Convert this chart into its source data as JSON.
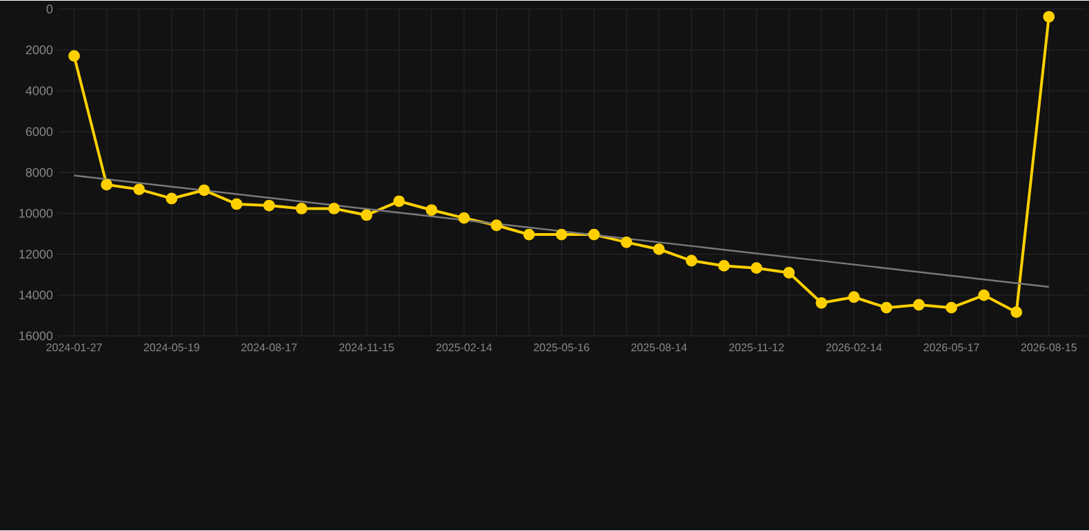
{
  "chart_data": {
    "type": "line",
    "categories": [
      "2024-01-27",
      null,
      null,
      "2024-05-19",
      null,
      null,
      "2024-08-17",
      null,
      null,
      "2024-11-15",
      null,
      null,
      "2025-02-14",
      null,
      null,
      "2025-05-16",
      null,
      null,
      "2025-08-14",
      null,
      null,
      "2025-11-12",
      null,
      null,
      "2026-02-14",
      null,
      null,
      "2026-05-17",
      null,
      null,
      "2026-08-15"
    ],
    "series": [
      {
        "color": "#ffd000",
        "marker": "circle",
        "values": [
          2300,
          8600,
          8830,
          9280,
          8870,
          9550,
          9620,
          9770,
          9770,
          10090,
          9410,
          9840,
          10230,
          10590,
          11040,
          11040,
          11040,
          11420,
          11760,
          12320,
          12570,
          12680,
          12910,
          14390,
          14100,
          14620,
          14480,
          14620,
          14010,
          14840,
          380
        ]
      },
      {
        "color": "#7a7a7a",
        "marker": "none",
        "values": [
          8150,
          null,
          null,
          null,
          null,
          null,
          null,
          null,
          null,
          null,
          null,
          null,
          null,
          null,
          null,
          null,
          null,
          null,
          null,
          null,
          null,
          null,
          null,
          null,
          null,
          null,
          null,
          null,
          null,
          null,
          13600
        ]
      }
    ],
    "ylim": [
      16000,
      0
    ],
    "yticks": [
      0,
      2000,
      4000,
      6000,
      8000,
      10000,
      12000,
      14000,
      16000
    ],
    "grid": true,
    "legend": false,
    "line_style": "solid"
  }
}
